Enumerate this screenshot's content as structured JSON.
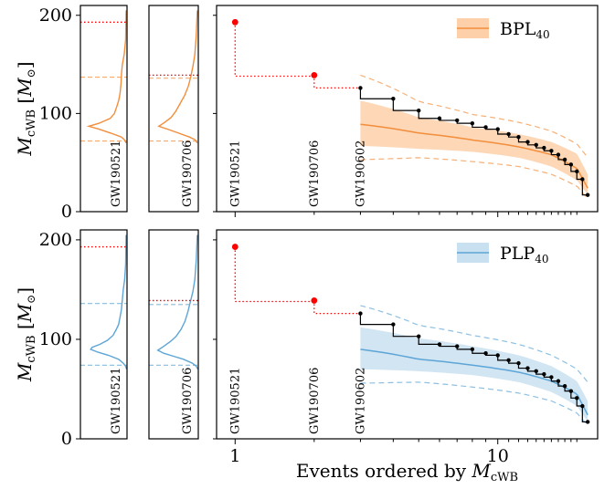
{
  "chart_data": [
    {
      "type": "line",
      "panel": "top",
      "legend": {
        "label_base": "BPL",
        "label_sub": "40",
        "placement": "top-right"
      },
      "ylabel": "M_cWB [M_sun]",
      "ylabel_parts": {
        "m": "M",
        "sub": "cWB",
        "open": "[",
        "unit": "M",
        "close": "]"
      },
      "ylim": [
        0,
        210
      ],
      "yticks": [
        0,
        100,
        200
      ],
      "xscale": "log",
      "xlim": [
        0.85,
        24
      ],
      "colors": {
        "model": "#f28e3c",
        "band": "#fdd0a9",
        "data": "#000000",
        "outlier": "#ff0000"
      },
      "events": [
        {
          "label": "GW190521",
          "rank": 1,
          "mass": 193,
          "line_to": 138
        },
        {
          "label": "GW190706",
          "rank": 2,
          "mass": 139,
          "line_to": 126
        },
        {
          "label": "GW190602",
          "rank": 3,
          "mass": 126
        }
      ],
      "observed_x": [
        3,
        4,
        5,
        6,
        7,
        8,
        9,
        10,
        11,
        12,
        13,
        14,
        15,
        16,
        17,
        18,
        19,
        20,
        21,
        22
      ],
      "observed_y": [
        126,
        115,
        103,
        95,
        93,
        90,
        86,
        84,
        79,
        76,
        71,
        68,
        65,
        62,
        58,
        53,
        48,
        41,
        33,
        17
      ],
      "median": {
        "x": [
          3,
          5,
          8,
          12,
          16,
          20,
          22
        ],
        "y": [
          89,
          80,
          73,
          66,
          58,
          44,
          24
        ]
      },
      "band": {
        "x": [
          3,
          5,
          8,
          12,
          16,
          20,
          22
        ],
        "lo": [
          67,
          64,
          61,
          55,
          46,
          32,
          17
        ],
        "hi": [
          113,
          96,
          86,
          79,
          71,
          59,
          38
        ]
      },
      "outer": {
        "x": [
          3,
          5,
          8,
          12,
          16,
          20,
          22
        ],
        "lo": [
          53,
          55,
          51,
          46,
          38,
          26,
          13
        ],
        "hi": [
          139,
          112,
          99,
          91,
          82,
          69,
          55
        ]
      },
      "side_panels": [
        {
          "label": "GW190521",
          "obs": 193,
          "lo": 72,
          "hi": 137,
          "peak": 87,
          "dist_y": [
            205,
            175,
            160,
            150,
            140,
            130,
            120,
            113,
            107,
            100,
            95,
            90,
            87,
            84,
            80,
            76,
            73,
            70
          ],
          "dist_v": [
            0.02,
            0.03,
            0.06,
            0.1,
            0.12,
            0.13,
            0.15,
            0.18,
            0.22,
            0.27,
            0.36,
            0.6,
            0.82,
            0.6,
            0.35,
            0.12,
            0.05,
            0.02
          ]
        },
        {
          "label": "GW190706",
          "obs": 139,
          "lo": 72,
          "hi": 136,
          "peak": 87,
          "dist_y": [
            205,
            180,
            160,
            148,
            138,
            128,
            118,
            110,
            102,
            96,
            91,
            87,
            84,
            80,
            76,
            73,
            70
          ],
          "dist_v": [
            0.02,
            0.04,
            0.07,
            0.11,
            0.15,
            0.2,
            0.28,
            0.37,
            0.46,
            0.55,
            0.68,
            0.8,
            0.62,
            0.4,
            0.18,
            0.06,
            0.02
          ]
        }
      ]
    },
    {
      "type": "line",
      "panel": "bottom",
      "legend": {
        "label_base": "PLP",
        "label_sub": "40",
        "placement": "top-right"
      },
      "ylabel": "M_cWB [M_sun]",
      "ylabel_parts": {
        "m": "M",
        "sub": "cWB",
        "open": "[",
        "unit": "M",
        "close": "]"
      },
      "xlabel": "Events ordered by M_cWB",
      "xlabel_parts": {
        "text": "Events ordered by ",
        "m": "M",
        "sub": "cWB"
      },
      "ylim": [
        0,
        210
      ],
      "yticks": [
        0,
        100,
        200
      ],
      "xscale": "log",
      "xticks": [
        1,
        10
      ],
      "xlim": [
        0.85,
        24
      ],
      "colors": {
        "model": "#5da5d6",
        "band": "#c9e0f1",
        "data": "#000000",
        "outlier": "#ff0000"
      },
      "events": [
        {
          "label": "GW190521",
          "rank": 1,
          "mass": 193,
          "line_to": 138
        },
        {
          "label": "GW190706",
          "rank": 2,
          "mass": 139,
          "line_to": 126
        },
        {
          "label": "GW190602",
          "rank": 3,
          "mass": 126
        }
      ],
      "observed_x": [
        3,
        4,
        5,
        6,
        7,
        8,
        9,
        10,
        11,
        12,
        13,
        14,
        15,
        16,
        17,
        18,
        19,
        20,
        21,
        22
      ],
      "observed_y": [
        126,
        115,
        103,
        95,
        93,
        90,
        86,
        84,
        79,
        76,
        71,
        68,
        65,
        62,
        58,
        53,
        48,
        41,
        33,
        17
      ],
      "median": {
        "x": [
          3,
          5,
          8,
          12,
          16,
          20,
          22
        ],
        "y": [
          90,
          80,
          74,
          67,
          58,
          45,
          24
        ]
      },
      "band": {
        "x": [
          3,
          5,
          8,
          12,
          16,
          20,
          22
        ],
        "lo": [
          70,
          68,
          64,
          57,
          47,
          33,
          17
        ],
        "hi": [
          112,
          101,
          93,
          84,
          73,
          58,
          38
        ]
      },
      "outer": {
        "x": [
          3,
          5,
          8,
          12,
          16,
          20,
          22
        ],
        "lo": [
          56,
          57,
          52,
          46,
          38,
          26,
          13
        ],
        "hi": [
          134,
          114,
          104,
          95,
          84,
          70,
          57
        ]
      },
      "side_panels": [
        {
          "label": "GW190521",
          "obs": 193,
          "lo": 74,
          "hi": 136,
          "peak": 90,
          "dist_y": [
            205,
            175,
            160,
            150,
            140,
            130,
            122,
            115,
            110,
            104,
            99,
            95,
            92,
            90,
            87,
            84,
            80,
            76,
            73,
            70
          ],
          "dist_v": [
            0.02,
            0.03,
            0.05,
            0.08,
            0.1,
            0.12,
            0.15,
            0.18,
            0.23,
            0.3,
            0.42,
            0.58,
            0.75,
            0.78,
            0.62,
            0.4,
            0.18,
            0.08,
            0.03,
            0.01
          ]
        },
        {
          "label": "GW190706",
          "obs": 139,
          "lo": 74,
          "hi": 135,
          "peak": 89,
          "dist_y": [
            205,
            180,
            160,
            148,
            138,
            128,
            118,
            110,
            103,
            98,
            93,
            89,
            86,
            83,
            80,
            76,
            73,
            70
          ],
          "dist_v": [
            0.02,
            0.04,
            0.07,
            0.11,
            0.16,
            0.21,
            0.27,
            0.35,
            0.45,
            0.56,
            0.7,
            0.82,
            0.7,
            0.5,
            0.3,
            0.12,
            0.04,
            0.01
          ]
        }
      ]
    }
  ]
}
